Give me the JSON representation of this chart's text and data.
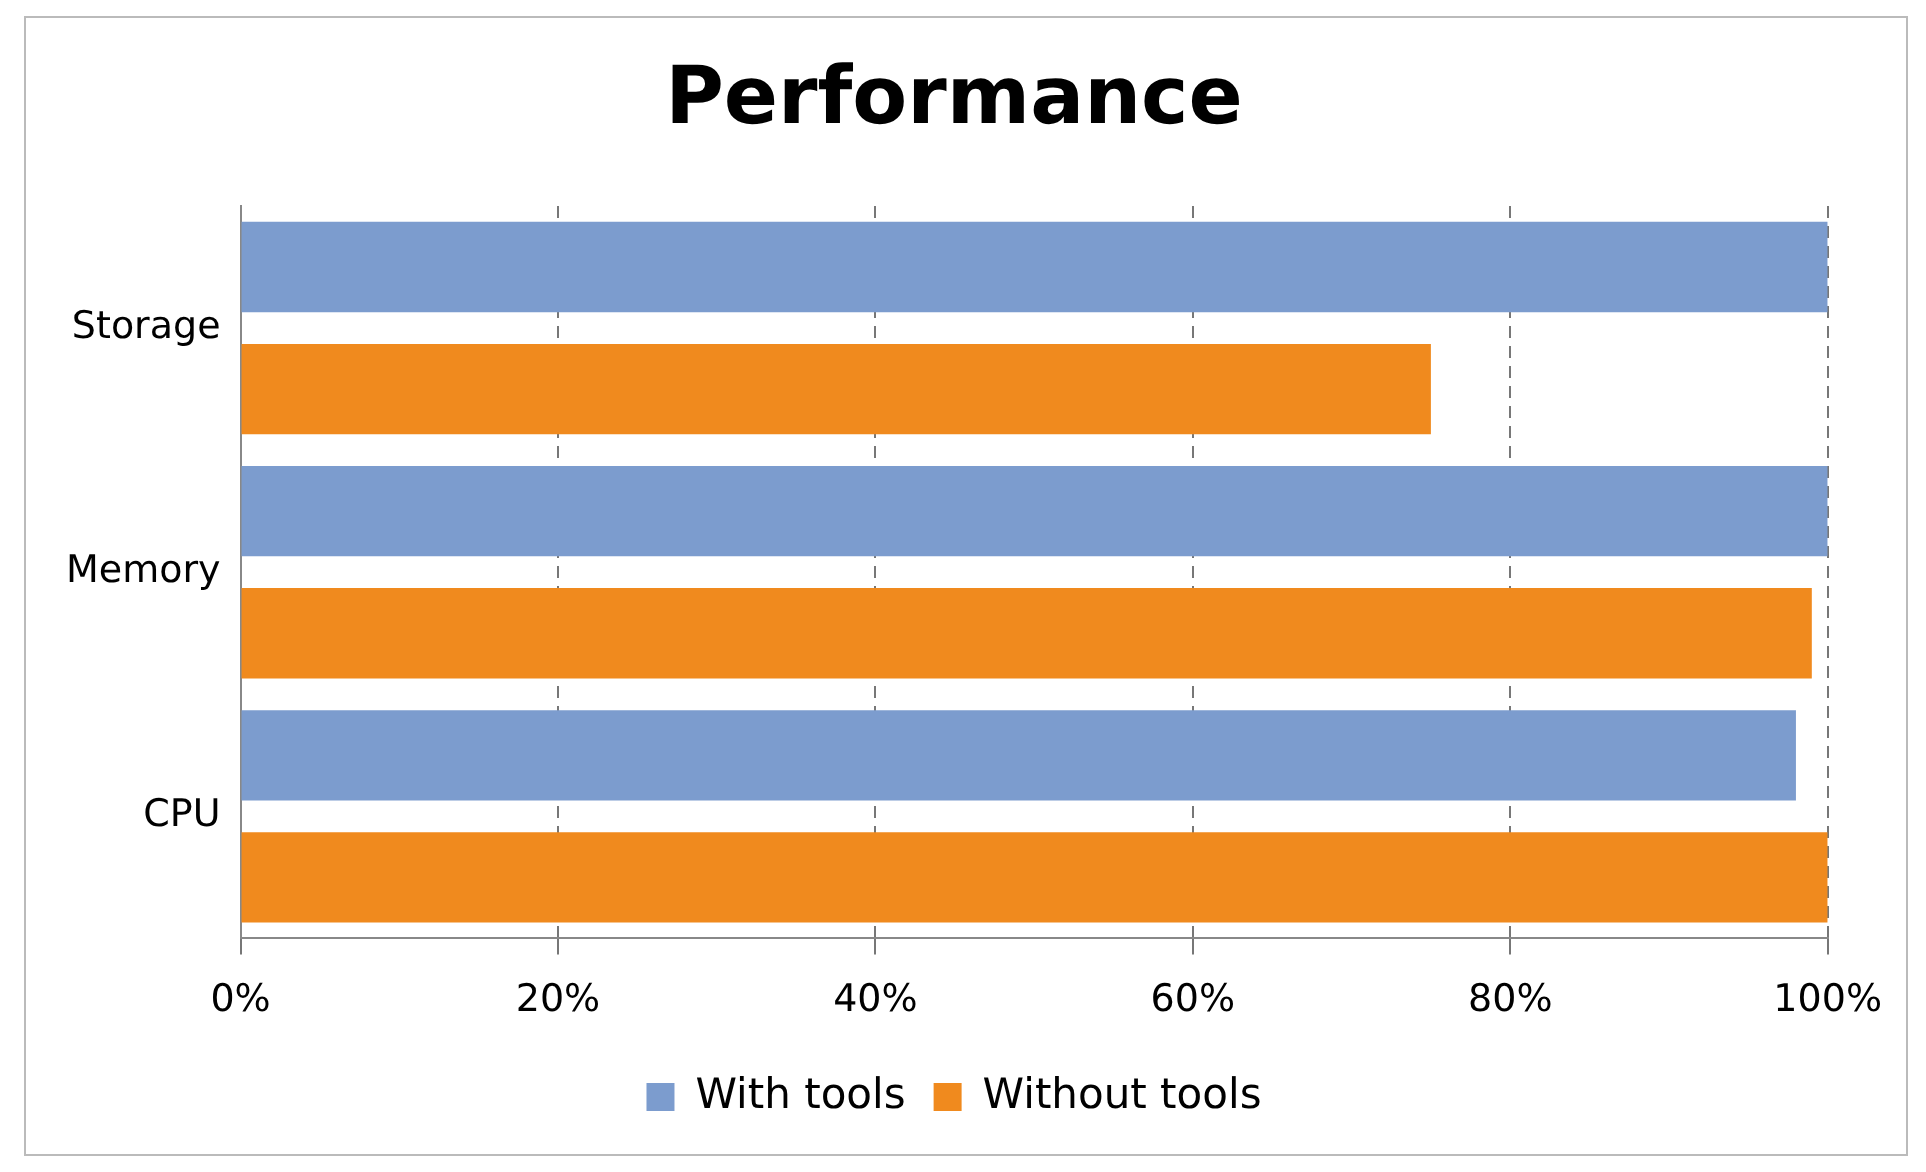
{
  "chart_data": {
    "type": "bar",
    "orientation": "horizontal",
    "title": "Performance",
    "categories": [
      "Storage",
      "Memory",
      "CPU"
    ],
    "series": [
      {
        "name": "With tools",
        "color": "#7c9cce",
        "values": [
          100,
          100,
          98
        ]
      },
      {
        "name": "Without tools",
        "color": "#f08a1e",
        "values": [
          75,
          99,
          100
        ]
      }
    ],
    "xlim": [
      0,
      100
    ],
    "xticks": [
      {
        "value": 0,
        "label": "0%"
      },
      {
        "value": 20,
        "label": "20%"
      },
      {
        "value": 40,
        "label": "40%"
      },
      {
        "value": 60,
        "label": "60%"
      },
      {
        "value": 80,
        "label": "80%"
      },
      {
        "value": 100,
        "label": "100%"
      }
    ],
    "grid": "x",
    "legend": "bottom"
  }
}
